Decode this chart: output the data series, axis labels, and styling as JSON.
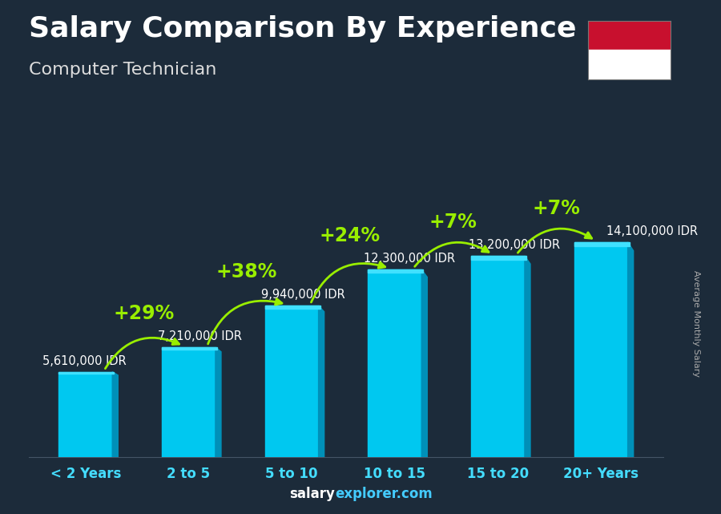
{
  "title": "Salary Comparison By Experience",
  "subtitle": "Computer Technician",
  "ylabel": "Average Monthly Salary",
  "categories": [
    "< 2 Years",
    "2 to 5",
    "5 to 10",
    "10 to 15",
    "15 to 20",
    "20+ Years"
  ],
  "values": [
    5610000,
    7210000,
    9940000,
    12300000,
    13200000,
    14100000
  ],
  "value_labels": [
    "5,610,000 IDR",
    "7,210,000 IDR",
    "9,940,000 IDR",
    "12,300,000 IDR",
    "13,200,000 IDR",
    "14,100,000 IDR"
  ],
  "pct_changes": [
    null,
    "+29%",
    "+38%",
    "+24%",
    "+7%",
    "+7%"
  ],
  "bar_color": "#00c8f0",
  "bar_side_color": "#0090b8",
  "bar_top_color": "#40e0ff",
  "bg_color": "#1c2b3a",
  "title_color": "#ffffff",
  "subtitle_color": "#dddddd",
  "value_label_color": "#ffffff",
  "pct_color": "#99ee00",
  "category_color": "#44ddff",
  "watermark_salary_color": "#ffffff",
  "watermark_explorer_color": "#44ccff",
  "flag_red": "#c8102e",
  "flag_white": "#ffffff",
  "title_fontsize": 26,
  "subtitle_fontsize": 16,
  "category_fontsize": 12,
  "value_fontsize": 10.5,
  "pct_fontsize": 17,
  "ylim_max": 17500000,
  "bar_width": 0.52
}
